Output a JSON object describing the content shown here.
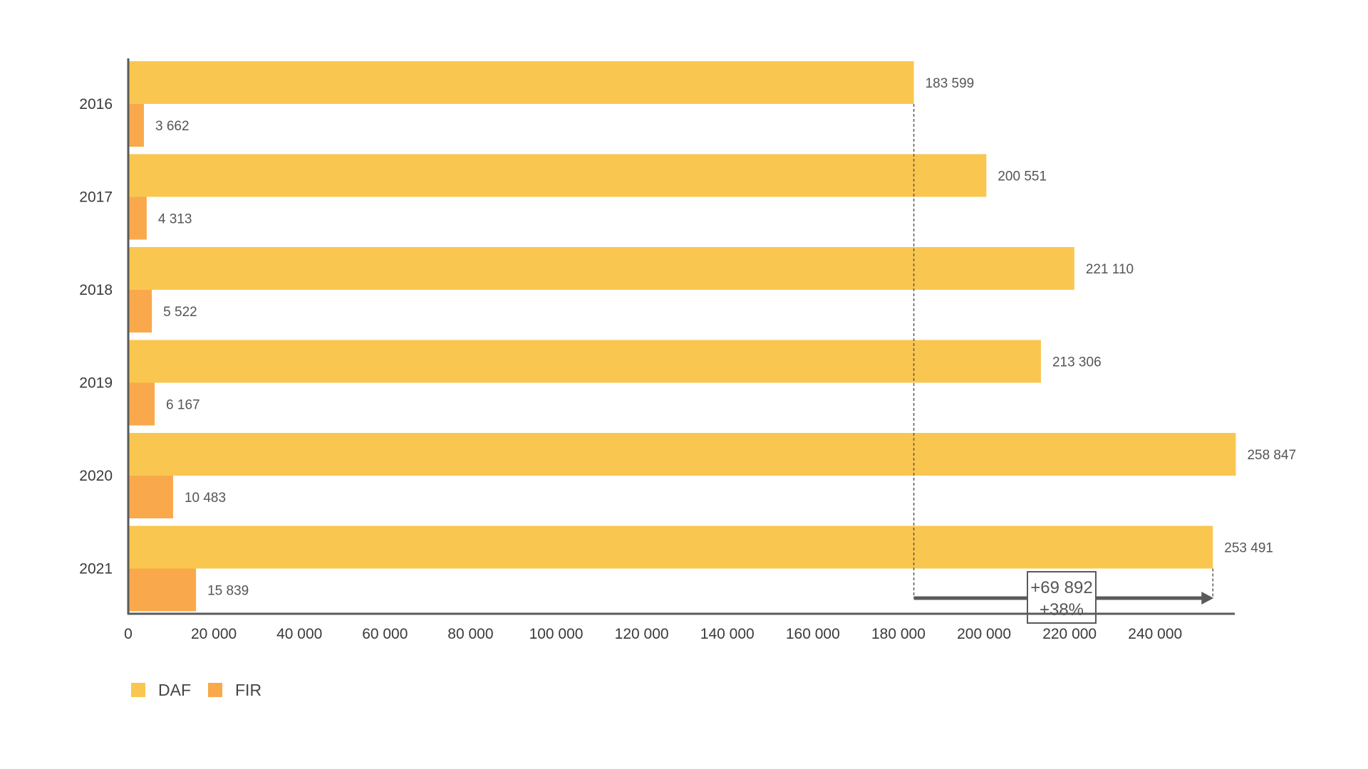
{
  "chart_data": {
    "type": "bar",
    "orientation": "horizontal",
    "categories": [
      "2016",
      "2017",
      "2018",
      "2019",
      "2020",
      "2021"
    ],
    "series": [
      {
        "name": "DAF",
        "color": "#f9c74f",
        "values": [
          183599,
          200551,
          221110,
          213306,
          258847,
          253491
        ],
        "labels": [
          "183 599",
          "200 551",
          "221 110",
          "213 306",
          "258 847",
          "253 491"
        ]
      },
      {
        "name": "FIR",
        "color": "#f9a94b",
        "values": [
          3662,
          4313,
          5522,
          6167,
          10483,
          15839
        ],
        "labels": [
          "3 662",
          "4 313",
          "5 522",
          "6 167",
          "10 483",
          "15 839"
        ]
      }
    ],
    "x_ticks": [
      0,
      20000,
      40000,
      60000,
      80000,
      100000,
      120000,
      140000,
      160000,
      180000,
      200000,
      220000,
      240000
    ],
    "x_tick_labels": [
      "0",
      "20 000",
      "40 000",
      "60 000",
      "80 000",
      "100 000",
      "120 000",
      "140 000",
      "160 000",
      "180 000",
      "200 000",
      "220 000",
      "240 000"
    ],
    "xlim": [
      0,
      259000
    ],
    "grid": false,
    "legend_position": "bottom-left",
    "annotation": {
      "from_value": 183599,
      "to_value": 253491,
      "line1": "+69 892",
      "line2": "+38%",
      "color": "#5a5a5a"
    },
    "axis_color": "#5a5a5a"
  }
}
